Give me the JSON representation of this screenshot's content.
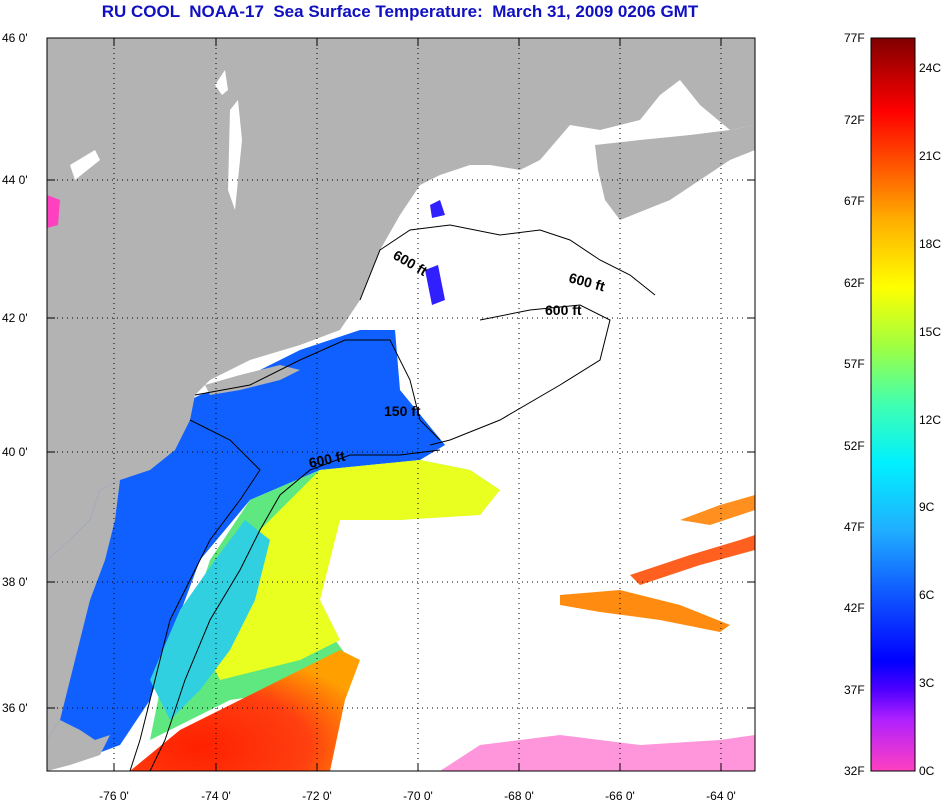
{
  "title": "RU COOL  NOAA-17  Sea Surface Temperature:  March 31, 2009 0206 GMT",
  "map": {
    "lat_labels": [
      "46 0'",
      "44 0'",
      "42 0'",
      "40 0'",
      "38 0'",
      "36 0'"
    ],
    "lon_labels": [
      "-76 0'",
      "-74 0'",
      "-72 0'",
      "-70 0'",
      "-68 0'",
      "-66 0'",
      "-64 0'"
    ],
    "contour_labels": [
      "600 ft",
      "600 ft",
      "600 ft",
      "150 ft",
      "600 ft"
    ],
    "colors": {
      "land": "#b3b3b3",
      "cloud": "#ffffff",
      "grid": "#000000"
    }
  },
  "colorbar": {
    "f_labels": [
      "77F",
      "72F",
      "67F",
      "62F",
      "57F",
      "52F",
      "47F",
      "42F",
      "37F",
      "32F"
    ],
    "c_labels": [
      "24C",
      "21C",
      "18C",
      "15C",
      "12C",
      "9C",
      "6C",
      "3C",
      "0C"
    ]
  }
}
